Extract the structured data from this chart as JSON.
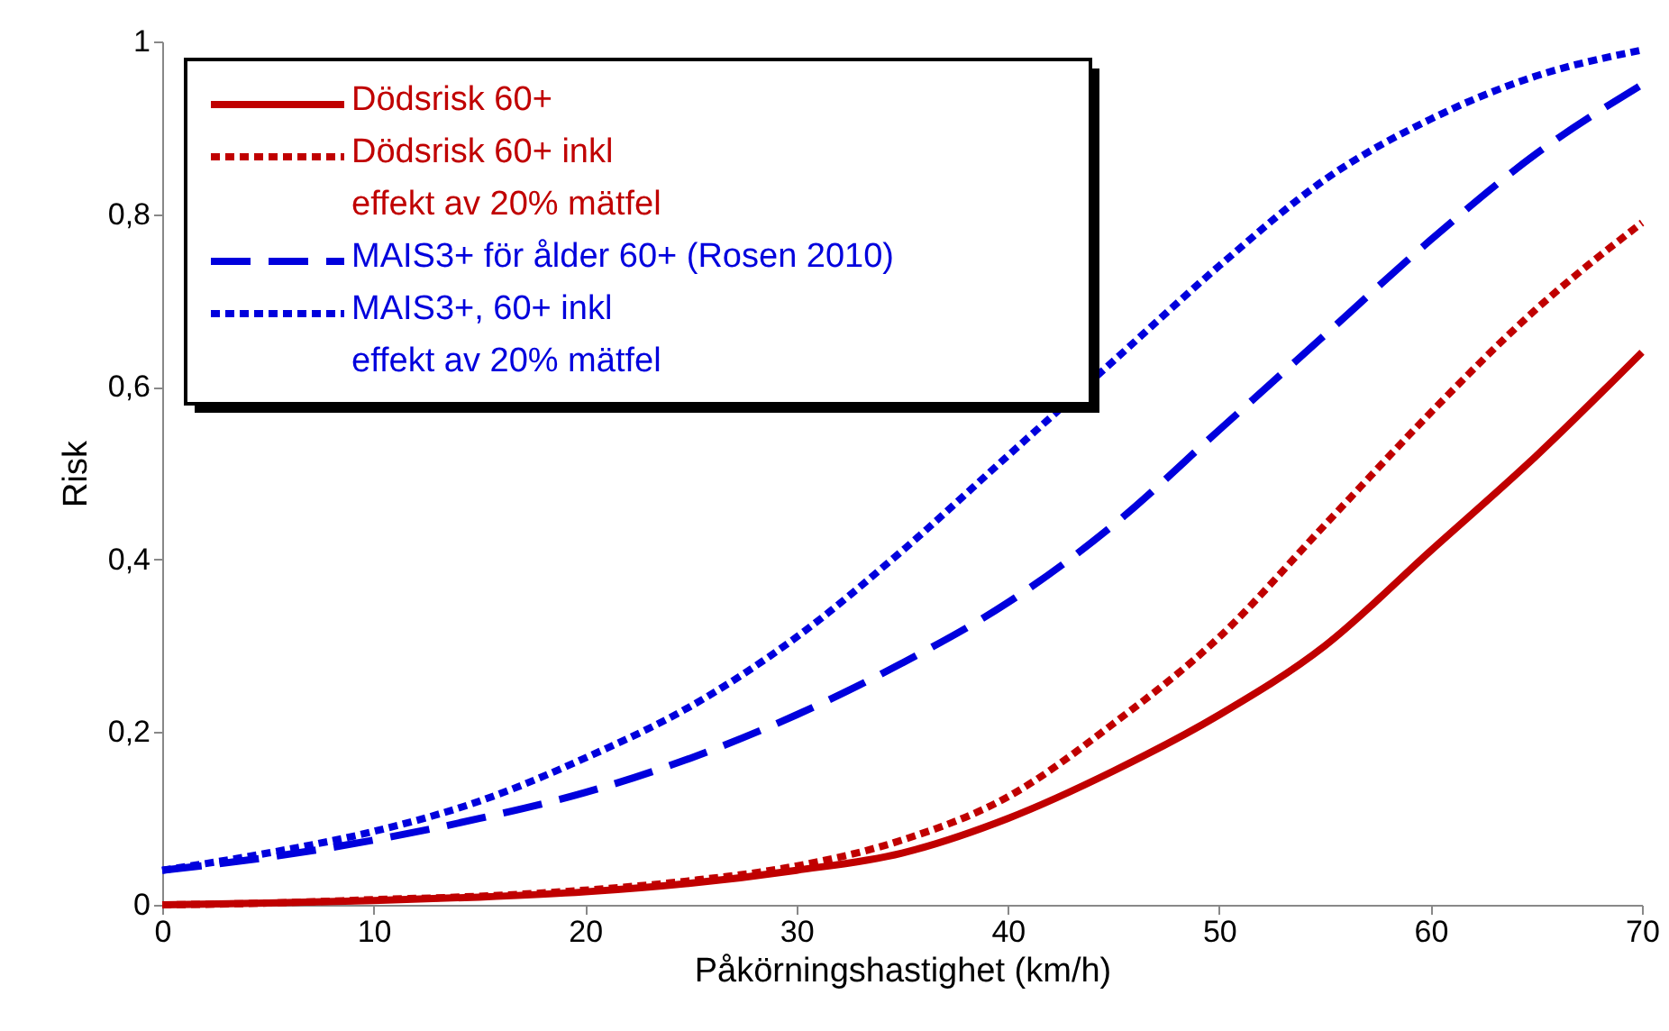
{
  "chart_data": {
    "type": "line",
    "xlabel": "Påkörningshastighet (km/h)",
    "ylabel": "Risk",
    "x": [
      0,
      5,
      10,
      15,
      20,
      25,
      30,
      35,
      40,
      45,
      50,
      55,
      60,
      65,
      70
    ],
    "series": [
      {
        "name": "Dödsrisk 60+",
        "color": "#c00000",
        "line_style": "solid",
        "values": [
          0.0,
          0.002,
          0.005,
          0.009,
          0.015,
          0.025,
          0.04,
          0.06,
          0.1,
          0.155,
          0.22,
          0.3,
          0.41,
          0.52,
          0.64
        ]
      },
      {
        "name": "Dödsrisk 60+ inkl\neffekt av 20% mätfel",
        "color": "#c00000",
        "line_style": "dotted",
        "values": [
          0.0,
          0.002,
          0.006,
          0.01,
          0.017,
          0.028,
          0.045,
          0.075,
          0.125,
          0.21,
          0.31,
          0.44,
          0.57,
          0.69,
          0.79
        ]
      },
      {
        "name": "MAIS3+ för ålder 60+ (Rosen 2010)",
        "color": "#0000dd",
        "line_style": "dashed",
        "values": [
          0.04,
          0.055,
          0.075,
          0.1,
          0.13,
          0.17,
          0.22,
          0.28,
          0.35,
          0.44,
          0.55,
          0.66,
          0.77,
          0.87,
          0.95
        ]
      },
      {
        "name": "MAIS3+, 60+ inkl\neffekt av 20% mätfel",
        "color": "#0000dd",
        "line_style": "dotted",
        "values": [
          0.04,
          0.06,
          0.085,
          0.12,
          0.17,
          0.23,
          0.31,
          0.41,
          0.52,
          0.63,
          0.74,
          0.84,
          0.91,
          0.96,
          0.99
        ]
      }
    ],
    "xlim": [
      0,
      70
    ],
    "xticks": [
      0,
      10,
      20,
      30,
      40,
      50,
      60,
      70
    ],
    "ylim": [
      0,
      1
    ],
    "yticks": [
      0,
      {
        "value": 0.2,
        "label": "0,2"
      },
      {
        "value": 0.4,
        "label": "0,4"
      },
      {
        "value": 0.6,
        "label": "0,6"
      },
      {
        "value": 0.8,
        "label": "0,8"
      },
      1
    ],
    "grid": false,
    "legend": "top left",
    "marker": "none"
  }
}
